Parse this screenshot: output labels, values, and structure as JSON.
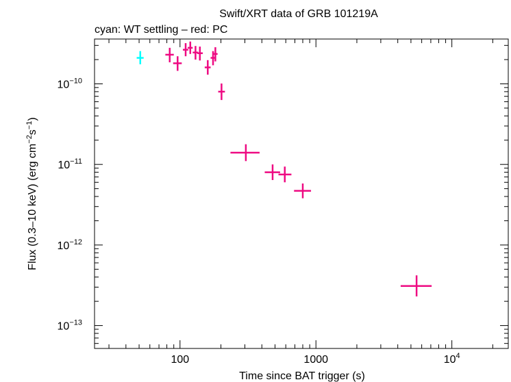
{
  "chart_data": {
    "type": "scatter",
    "title": "Swift/XRT data of GRB 101219A",
    "subtitle": "cyan: WT settling – red: PC",
    "xlabel": "Time since BAT trigger (s)",
    "ylabel_parts": [
      "Flux (0.3–10 keV) (erg cm",
      "−2",
      "s",
      "−1",
      ")"
    ],
    "x_scale": "log",
    "y_scale": "log",
    "xlim": [
      23.5,
      26000
    ],
    "ylim": [
      5.2e-14,
      3.6e-10
    ],
    "x_ticks": [
      {
        "value": 100,
        "label": "100"
      },
      {
        "value": 1000,
        "label": "1000"
      },
      {
        "value": 10000,
        "label_base": "10",
        "label_exp": "4"
      }
    ],
    "y_ticks": [
      {
        "value": 1e-10,
        "label_base": "10",
        "label_exp": "−10"
      },
      {
        "value": 1e-11,
        "label_base": "10",
        "label_exp": "−11"
      },
      {
        "value": 1e-12,
        "label_base": "10",
        "label_exp": "−12"
      },
      {
        "value": 1e-13,
        "label_base": "10",
        "label_exp": "−13"
      }
    ],
    "grid": false,
    "series": [
      {
        "color": "#00ffff",
        "points": [
          {
            "x": 51,
            "xlo": 48,
            "xhi": 54,
            "y": 2.1e-10,
            "ylo": 1.75e-10,
            "yhi": 2.55e-10
          }
        ]
      },
      {
        "color": "#ee0a82",
        "points": [
          {
            "x": 84,
            "xlo": 78,
            "xhi": 90,
            "y": 2.3e-10,
            "ylo": 1.85e-10,
            "yhi": 2.8e-10
          },
          {
            "x": 96,
            "xlo": 89,
            "xhi": 103,
            "y": 1.8e-10,
            "ylo": 1.45e-10,
            "yhi": 2.2e-10
          },
          {
            "x": 110,
            "xlo": 105,
            "xhi": 115,
            "y": 2.65e-10,
            "ylo": 2.2e-10,
            "yhi": 3.2e-10
          },
          {
            "x": 119,
            "xlo": 114,
            "xhi": 124,
            "y": 2.8e-10,
            "ylo": 2.35e-10,
            "yhi": 3.35e-10
          },
          {
            "x": 130,
            "xlo": 124,
            "xhi": 136,
            "y": 2.45e-10,
            "ylo": 2e-10,
            "yhi": 2.95e-10
          },
          {
            "x": 140,
            "xlo": 134,
            "xhi": 147,
            "y": 2.4e-10,
            "ylo": 1.95e-10,
            "yhi": 2.9e-10
          },
          {
            "x": 160,
            "xlo": 152,
            "xhi": 168,
            "y": 1.6e-10,
            "ylo": 1.3e-10,
            "yhi": 1.97e-10
          },
          {
            "x": 175,
            "xlo": 168,
            "xhi": 182,
            "y": 2.1e-10,
            "ylo": 1.7e-10,
            "yhi": 2.55e-10
          },
          {
            "x": 182,
            "xlo": 176,
            "xhi": 189,
            "y": 2.35e-10,
            "ylo": 1.9e-10,
            "yhi": 2.85e-10
          },
          {
            "x": 202,
            "xlo": 191,
            "xhi": 214,
            "y": 8e-11,
            "ylo": 6.3e-11,
            "yhi": 1.01e-10
          },
          {
            "x": 305,
            "xlo": 235,
            "xhi": 385,
            "y": 1.4e-11,
            "ylo": 1.1e-11,
            "yhi": 1.78e-11
          },
          {
            "x": 480,
            "xlo": 420,
            "xhi": 545,
            "y": 8e-12,
            "ylo": 6.4e-12,
            "yhi": 1e-11
          },
          {
            "x": 590,
            "xlo": 530,
            "xhi": 660,
            "y": 7.5e-12,
            "ylo": 6e-12,
            "yhi": 9.4e-12
          },
          {
            "x": 800,
            "xlo": 690,
            "xhi": 920,
            "y": 4.7e-12,
            "ylo": 3.8e-12,
            "yhi": 5.8e-12
          },
          {
            "x": 5500,
            "xlo": 4200,
            "xhi": 7100,
            "y": 3.1e-13,
            "ylo": 2.3e-13,
            "yhi": 4.2e-13
          }
        ]
      }
    ]
  }
}
